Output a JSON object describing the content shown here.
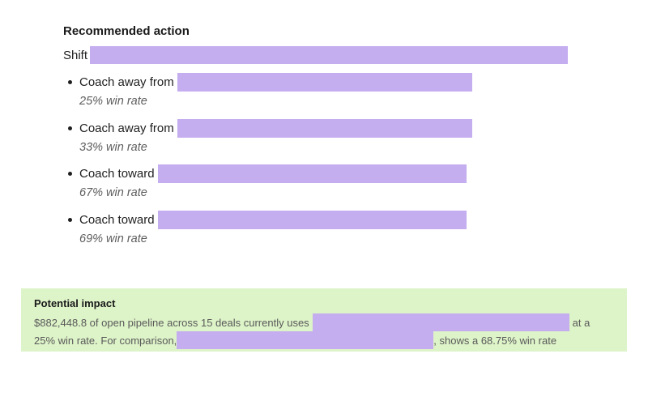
{
  "recommendation": {
    "heading": "Recommended action",
    "shift_label": "Shift",
    "items": [
      {
        "prefix": "Coach away from",
        "win_rate": "25% win rate"
      },
      {
        "prefix": "Coach away from",
        "win_rate": "33% win rate"
      },
      {
        "prefix": "Coach toward",
        "win_rate": "67% win rate"
      },
      {
        "prefix": "Coach toward",
        "win_rate": "69% win rate"
      }
    ]
  },
  "impact": {
    "title": "Potential impact",
    "line1_start": "$882,448.8 of open pipeline across 15 deals currently uses",
    "line1_end": "at a",
    "line2_start": "25% win rate. For comparison,",
    "line2_end": ", shows a 68.75% win rate"
  },
  "colors": {
    "redaction": "#c5aef0",
    "impact_background": "#ddf3c8"
  }
}
